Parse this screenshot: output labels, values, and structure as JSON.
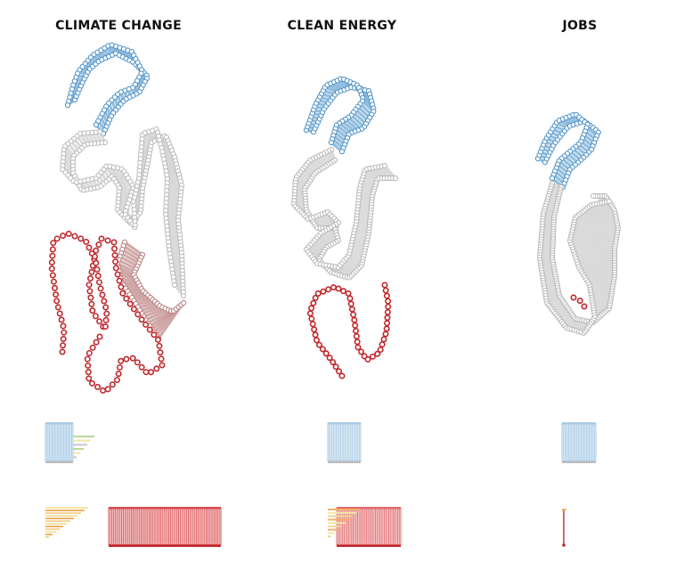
{
  "chart_data": {
    "type": "scatter",
    "description_free": true,
    "colors": {
      "blue": "#7fb3d8",
      "blue_dark": "#4a90c8",
      "gray": "#c8c8c8",
      "red": "#c0282d",
      "red_light": "#e39a9a",
      "rose": "#c99a9a",
      "orange": "#f2b06a",
      "yellow": "#f1e6a8",
      "green": "#b9d89a"
    },
    "panels": [
      {
        "title": "CLIMATE CHANGE",
        "blue_count": 48,
        "gray_count": 120,
        "red_count": 130
      },
      {
        "title": "CLEAN ENERGY",
        "blue_count": 44,
        "gray_count": 112,
        "red_count": 52
      },
      {
        "title": "JOBS",
        "blue_count": 40,
        "gray_count": 130,
        "red_count": 3
      }
    ]
  }
}
